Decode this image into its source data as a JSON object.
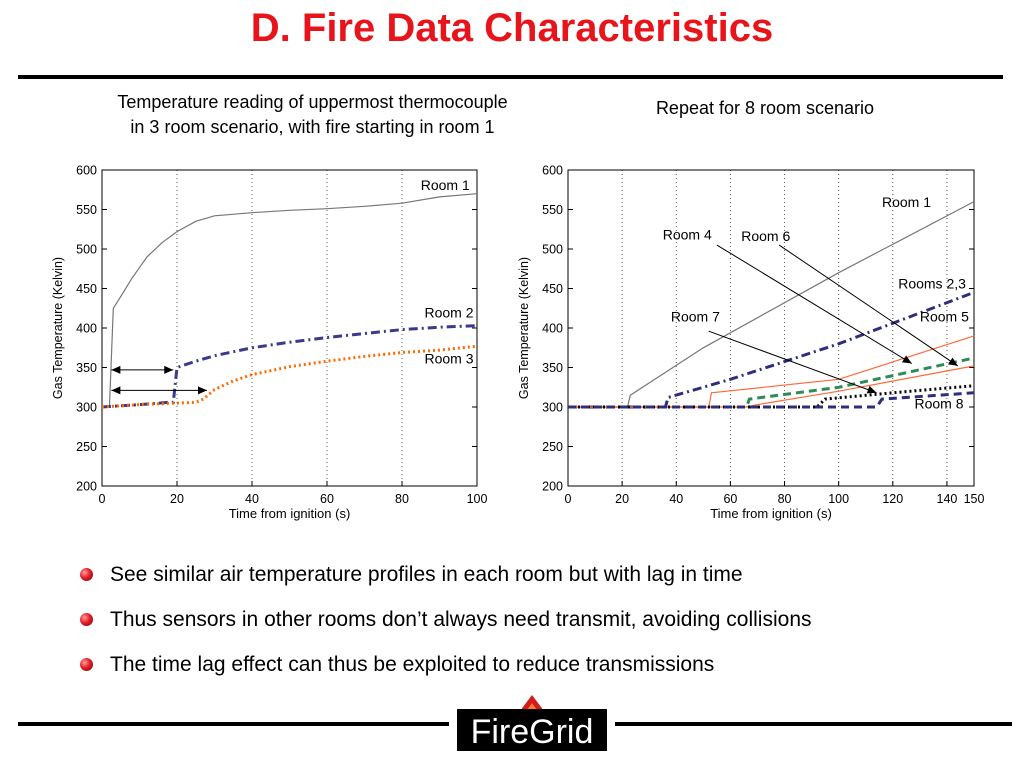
{
  "slide": {
    "title": "D. Fire Data Characteristics",
    "left_caption_line1": "Temperature reading of uppermost thermocouple",
    "left_caption_line2": "in 3 room scenario, with fire starting in room 1",
    "right_caption": "Repeat for 8 room scenario",
    "bullets": [
      "See similar air temperature profiles in each room but with lag in time",
      "Thus sensors in other rooms don’t always need transmit, avoiding collisions",
      "The time lag effect can thus be exploited to reduce transmissions"
    ],
    "logo_text": "FireGrid",
    "colors": {
      "title": "#e8141c",
      "rule": "#000000",
      "bullet": "#e0202a"
    }
  },
  "chart_data": [
    {
      "type": "line",
      "xlabel": "Time from ignition (s)",
      "ylabel": "Gas Temperature (Kelvin)",
      "xlim": [
        0,
        100
      ],
      "ylim": [
        200,
        600
      ],
      "xticks": [
        0,
        20,
        40,
        60,
        80,
        100
      ],
      "yticks": [
        200,
        250,
        300,
        350,
        400,
        450,
        500,
        550,
        600
      ],
      "grid": true,
      "series": [
        {
          "name": "Room 1",
          "color": "#777777",
          "style": "solid",
          "x": [
            0,
            2,
            3,
            5,
            8,
            12,
            16,
            20,
            25,
            30,
            40,
            50,
            60,
            70,
            80,
            90,
            100
          ],
          "y": [
            300,
            302,
            425,
            440,
            463,
            490,
            508,
            522,
            535,
            542,
            546,
            549,
            551,
            554,
            558,
            566,
            570
          ]
        },
        {
          "name": "Room 2",
          "color": "#3a3a8c",
          "style": "dashdot",
          "x": [
            0,
            10,
            18,
            19,
            20,
            25,
            30,
            40,
            50,
            60,
            70,
            80,
            90,
            100
          ],
          "y": [
            300,
            303,
            306,
            306,
            350,
            358,
            365,
            375,
            382,
            388,
            393,
            398,
            401,
            403
          ]
        },
        {
          "name": "Room 3",
          "color": "#ff6a00",
          "style": "dotted",
          "x": [
            0,
            10,
            20,
            25,
            27,
            30,
            35,
            40,
            50,
            60,
            70,
            80,
            90,
            100
          ],
          "y": [
            300,
            303,
            305,
            306,
            310,
            322,
            333,
            341,
            351,
            358,
            364,
            369,
            372,
            377
          ]
        }
      ],
      "annotations": [
        "Room 1",
        "Room 2",
        "Room 3"
      ]
    },
    {
      "type": "line",
      "xlabel": "Time from ignition (s)",
      "ylabel": "Gas Temperature (Kelvin)",
      "xlim": [
        0,
        150
      ],
      "ylim": [
        200,
        600
      ],
      "xticks": [
        0,
        20,
        40,
        60,
        80,
        100,
        120,
        140,
        150
      ],
      "yticks": [
        200,
        250,
        300,
        350,
        400,
        450,
        500,
        550,
        600
      ],
      "grid": true,
      "series": [
        {
          "name": "Room 1",
          "color": "#777777",
          "style": "solid",
          "x": [
            0,
            22,
            23,
            50,
            100,
            150
          ],
          "y": [
            300,
            300,
            315,
            375,
            470,
            560
          ]
        },
        {
          "name": "Rooms 2,3",
          "color": "#2e2e7e",
          "style": "dashdot",
          "x": [
            0,
            36,
            37,
            60,
            100,
            150
          ],
          "y": [
            300,
            300,
            312,
            335,
            380,
            445
          ]
        },
        {
          "name": "Room 5",
          "color": "#ff6a3a",
          "style": "solid",
          "x": [
            0,
            52,
            53,
            100,
            150
          ],
          "y": [
            300,
            300,
            318,
            335,
            390
          ]
        },
        {
          "name": "Room 6",
          "color": "#ff6a3a",
          "style": "solid",
          "x": [
            0,
            66,
            70,
            100,
            150
          ],
          "y": [
            300,
            300,
            303,
            320,
            352
          ]
        },
        {
          "name": "Room 4",
          "color": "#2e8b57",
          "style": "dashed",
          "x": [
            0,
            66,
            67,
            100,
            150
          ],
          "y": [
            300,
            300,
            310,
            325,
            362
          ]
        },
        {
          "name": "Room 7",
          "color": "#000000",
          "style": "dotted",
          "x": [
            0,
            92,
            95,
            120,
            150
          ],
          "y": [
            300,
            300,
            310,
            318,
            327
          ]
        },
        {
          "name": "Room 8",
          "color": "#2e2e7e",
          "style": "dashed",
          "x": [
            0,
            114,
            116,
            150
          ],
          "y": [
            300,
            300,
            310,
            318
          ]
        }
      ],
      "annotations": [
        "Room 1",
        "Room 4",
        "Room 6",
        "Rooms 2,3",
        "Room 5",
        "Room 7",
        "Room 8"
      ]
    }
  ]
}
